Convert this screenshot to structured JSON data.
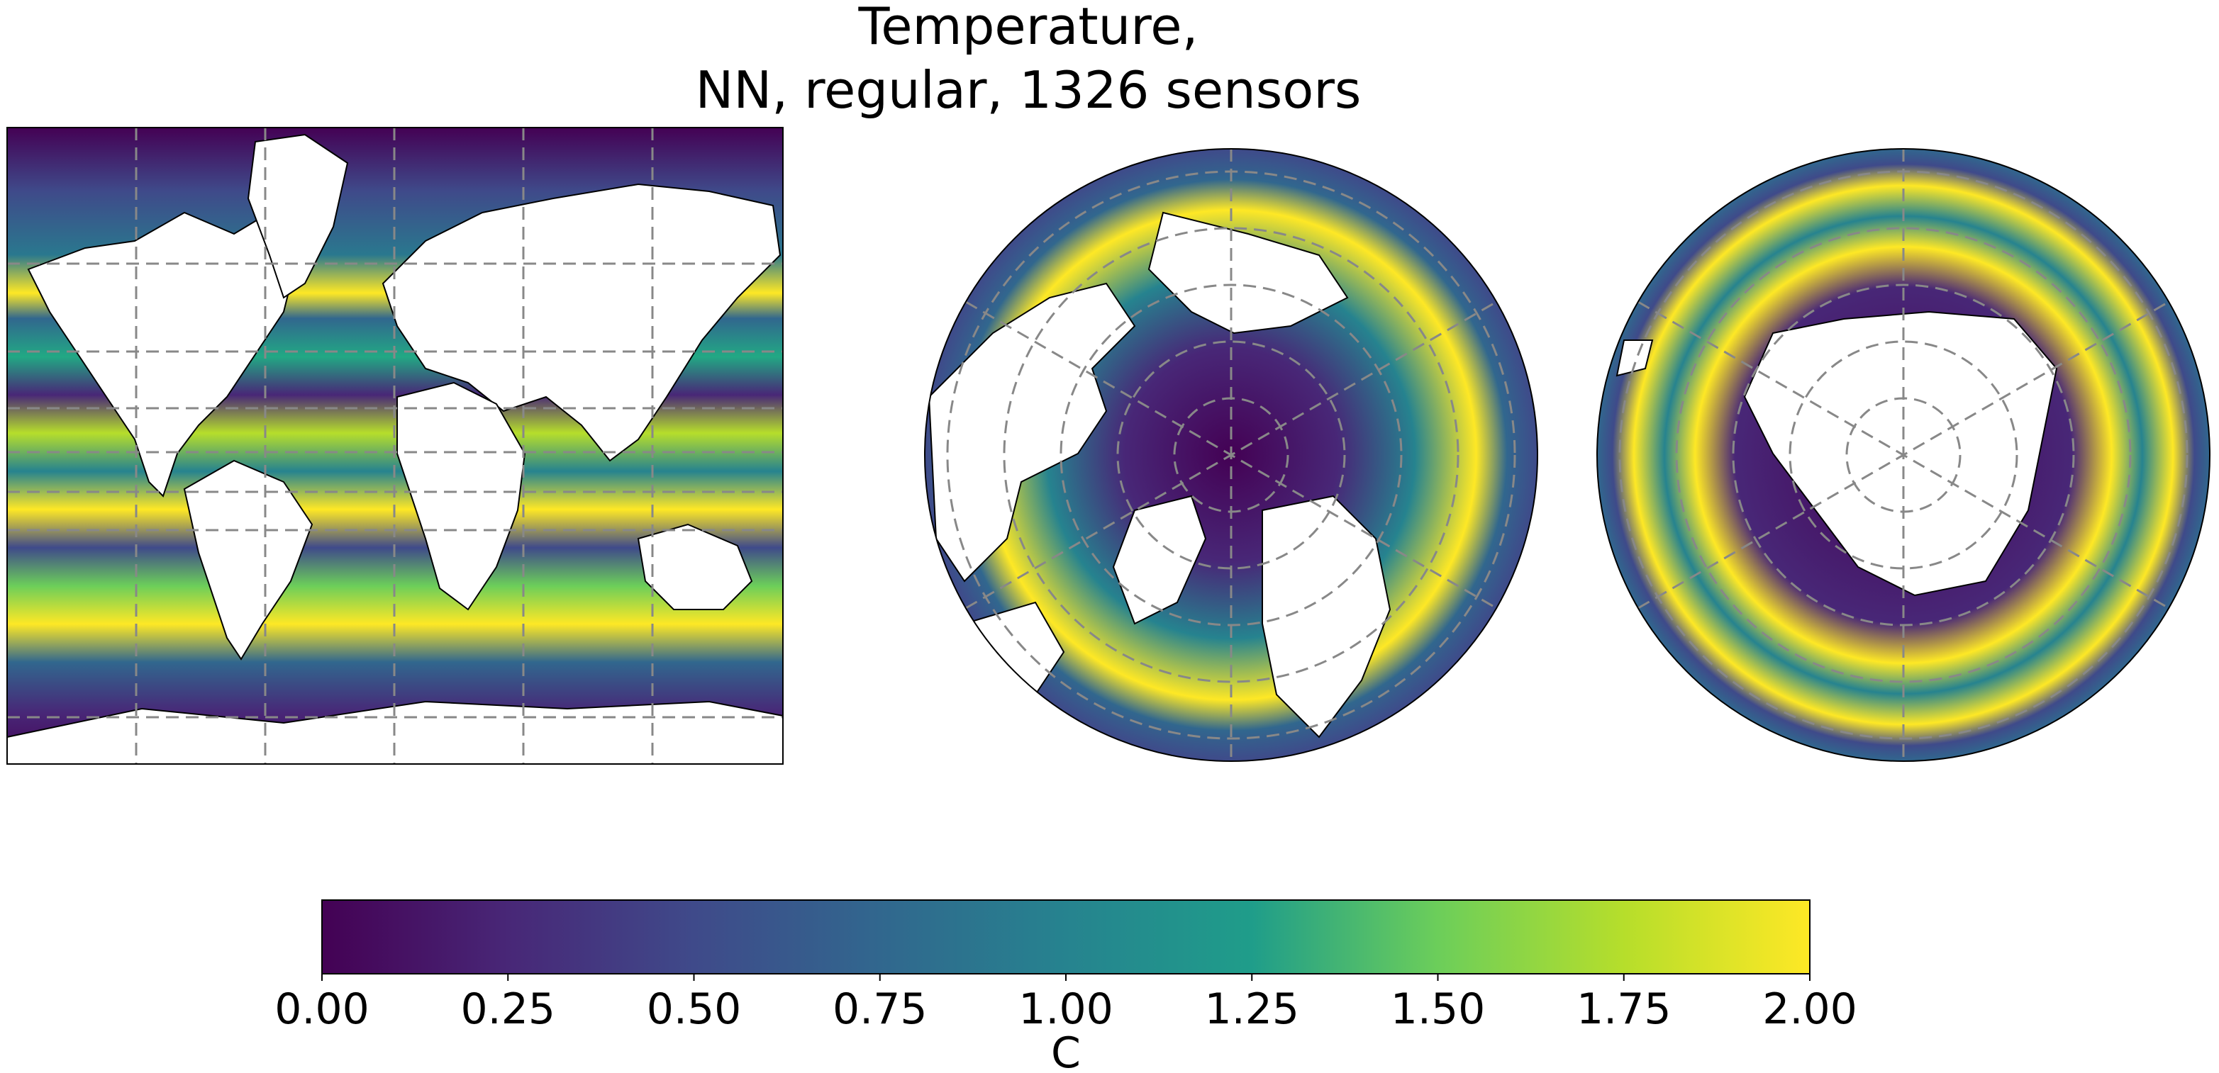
{
  "title_line1": "Temperature,",
  "title_line2": "NN, regular, 1326 sensors",
  "colorbar": {
    "colormap": "viridis",
    "min": 0,
    "max": 2,
    "ticks": [
      "0.00",
      "0.25",
      "0.50",
      "0.75",
      "1.00",
      "1.25",
      "1.50",
      "1.75",
      "2.00"
    ],
    "label": "C"
  },
  "panels": [
    {
      "projection": "mercator",
      "gridlines": "dashed"
    },
    {
      "projection": "north-polar-stereographic",
      "gridlines": "dashed"
    },
    {
      "projection": "south-polar-stereographic",
      "gridlines": "dashed"
    }
  ],
  "colors": {
    "land": "#ffffff",
    "coastline": "#000000",
    "gridline": "#888888",
    "viridis_stops": [
      "#440154",
      "#482777",
      "#3f4a8a",
      "#31678e",
      "#26838f",
      "#1f9d8a",
      "#6cce5a",
      "#b6de2b",
      "#fee825"
    ]
  }
}
